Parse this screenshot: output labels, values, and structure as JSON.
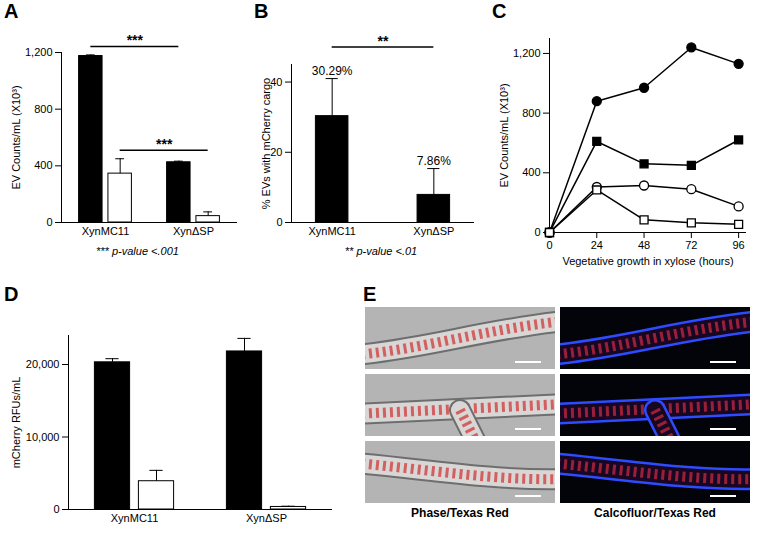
{
  "chart_data": [
    {
      "panel": "A",
      "type": "bar",
      "y_label": "EV Counts/mL (X10³)",
      "categories": [
        "XynMC11",
        "XynΔSP"
      ],
      "series": [
        {
          "color": "#000000",
          "values": [
            1175,
            425
          ],
          "errors": [
            8,
            8
          ],
          "significance": "***"
        },
        {
          "color": "#ffffff",
          "values": [
            345,
            45
          ],
          "errors": [
            105,
            30
          ],
          "significance": "***"
        }
      ],
      "ylim": [
        0,
        1200
      ],
      "yticks": [
        0,
        400,
        800,
        {
          "value": 1200,
          "label": "1,200"
        }
      ],
      "footnote": "*** p-value <.001"
    },
    {
      "panel": "B",
      "type": "bar",
      "y_label": "% EVs with mCherry cargo",
      "categories": [
        "XynMC11",
        "XynΔSP"
      ],
      "series": [
        {
          "color": "#000000",
          "values": [
            30.29,
            7.86
          ],
          "errors": [
            10.7,
            7.5
          ],
          "value_labels": [
            "30.29%",
            "7.86%"
          ],
          "significance": "**"
        }
      ],
      "data_labels": true,
      "ylim": [
        0,
        45
      ],
      "yticks": [
        0,
        20,
        40
      ],
      "footnote": "** p-value <.01"
    },
    {
      "panel": "C",
      "type": "line",
      "x_label": "Vegetative growth in xylose (hours)",
      "y_label": "EV Counts/mL (X10³)",
      "x": [
        0,
        24,
        48,
        72,
        96
      ],
      "series": [
        {
          "color": "#000000",
          "marker": "filled-circle",
          "values": [
            0,
            880,
            970,
            1240,
            1130
          ]
        },
        {
          "color": "#000000",
          "marker": "filled-square",
          "values": [
            0,
            610,
            460,
            450,
            620
          ]
        },
        {
          "color": "#000000",
          "marker": "open-circle",
          "values": [
            0,
            305,
            315,
            290,
            175
          ]
        },
        {
          "color": "#000000",
          "marker": "open-square",
          "values": [
            0,
            285,
            85,
            65,
            55
          ]
        }
      ],
      "xlim": [
        0,
        100
      ],
      "xticks": [
        0,
        24,
        48,
        72,
        96
      ],
      "ylim": [
        0,
        1300
      ],
      "yticks": [
        0,
        400,
        800,
        {
          "value": 1200,
          "label": "1,200"
        }
      ]
    },
    {
      "panel": "D",
      "type": "bar",
      "y_label": "mCherry RFUs/mL",
      "categories": [
        "XynMC11",
        "XynΔSP"
      ],
      "series": [
        {
          "color": "#000000",
          "values": [
            20300,
            21800
          ],
          "errors": [
            500,
            1800
          ]
        },
        {
          "color": "#ffffff",
          "values": [
            3900,
            350
          ],
          "errors": [
            1500,
            100
          ]
        }
      ],
      "ylim": [
        0,
        24000
      ],
      "yticks": [
        0,
        {
          "value": 10000,
          "label": "10,000"
        },
        {
          "value": 20000,
          "label": "20,000"
        }
      ]
    }
  ],
  "image_panel": {
    "panel": "E",
    "captions": [
      "Phase/Texas Red",
      "Calcofluor/Texas Red"
    ]
  }
}
